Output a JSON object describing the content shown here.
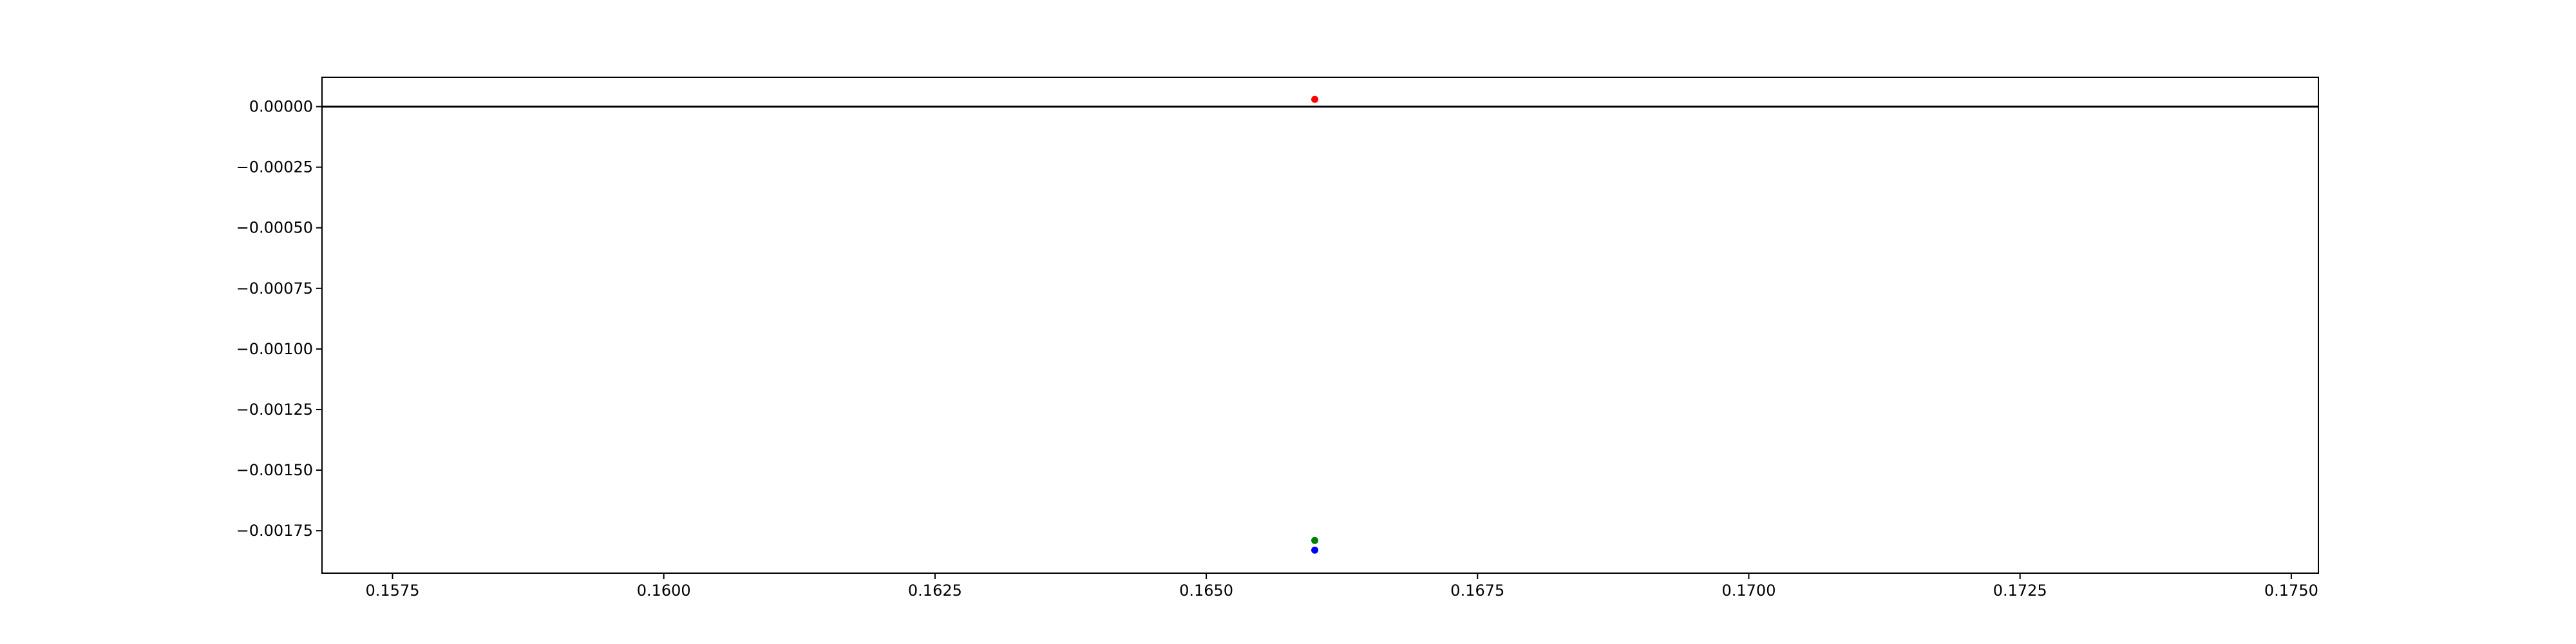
{
  "chart_data": {
    "type": "scatter",
    "title": "",
    "xlabel": "",
    "ylabel": "",
    "xlim": [
      0.15685,
      0.17525
    ],
    "ylim": [
      -0.001925,
      0.000121
    ],
    "grid": false,
    "xticks": [
      0.1575,
      0.16,
      0.1625,
      0.165,
      0.1675,
      0.17,
      0.1725,
      0.175
    ],
    "xtick_labels": [
      "0.1575",
      "0.1600",
      "0.1625",
      "0.1650",
      "0.1675",
      "0.1700",
      "0.1725",
      "0.1750"
    ],
    "yticks": [
      0,
      -0.00025,
      -0.0005,
      -0.00075,
      -0.001,
      -0.00125,
      -0.0015,
      -0.00175
    ],
    "ytick_labels": [
      "0.00000",
      "−0.00025",
      "−0.00050",
      "−0.00075",
      "−0.00100",
      "−0.00125",
      "−0.00150",
      "−0.00175"
    ],
    "hlines": [
      {
        "y": 0,
        "color": "#000000"
      }
    ],
    "series": [
      {
        "color": "#ff0000",
        "points": [
          {
            "x": 0.166,
            "y": 3e-05
          }
        ]
      },
      {
        "color": "#008000",
        "points": [
          {
            "x": 0.166,
            "y": -0.00179
          }
        ]
      },
      {
        "color": "#0000ff",
        "points": [
          {
            "x": 0.166,
            "y": -0.00183
          }
        ]
      }
    ]
  }
}
